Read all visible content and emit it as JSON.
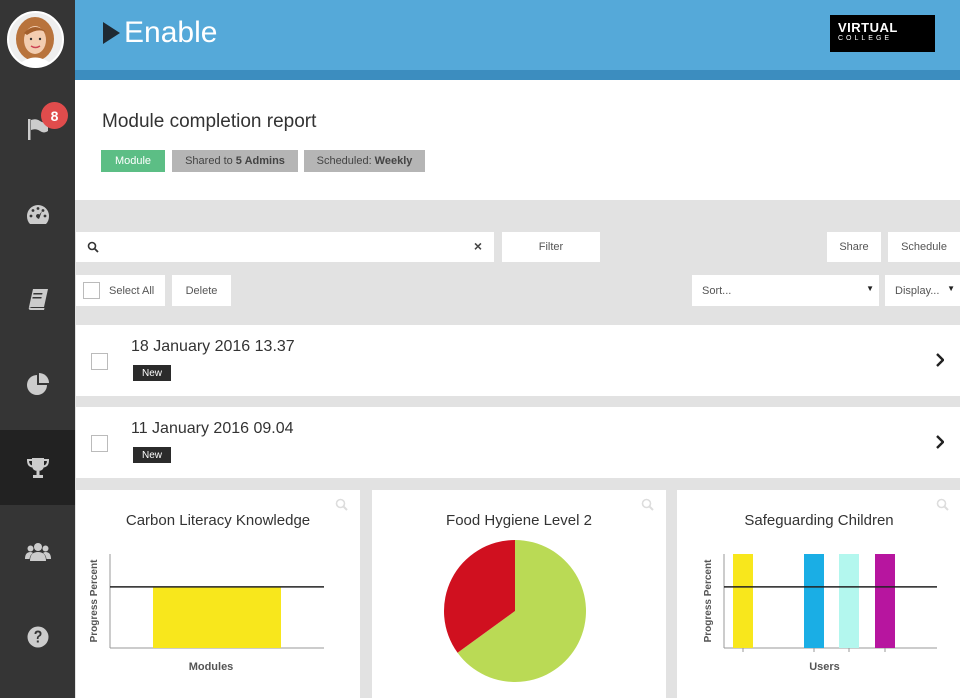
{
  "app": {
    "brand": "Enable",
    "logo_top": "VIRTUAL",
    "logo_bottom": "COLLEGE"
  },
  "sidebar": {
    "notification_count": "8",
    "items": [
      {
        "name": "flag-icon",
        "active": false
      },
      {
        "name": "dashboard-icon",
        "active": false
      },
      {
        "name": "book-icon",
        "active": false
      },
      {
        "name": "pie-chart-icon",
        "active": false
      },
      {
        "name": "trophy-icon",
        "active": true
      },
      {
        "name": "users-icon",
        "active": false
      },
      {
        "name": "help-icon",
        "active": false
      }
    ]
  },
  "page": {
    "title": "Module completion report",
    "tags": {
      "module": "Module",
      "shared_prefix": "Shared to",
      "shared_value": "5 Admins",
      "scheduled_prefix": "Scheduled:",
      "scheduled_value": "Weekly"
    }
  },
  "toolbar": {
    "search_value": "",
    "clear": "×",
    "filter": "Filter",
    "share": "Share",
    "schedule": "Schedule",
    "select_all": "Select All",
    "delete": "Delete",
    "sort": "Sort...",
    "display": "Display..."
  },
  "reports": [
    {
      "date": "18 January 2016 13.37",
      "badge": "New"
    },
    {
      "date": "11 January 2016 09.04",
      "badge": "New"
    }
  ],
  "charts": [
    {
      "title": "Carbon Literacy Knowledge",
      "ylabel": "Progress Percent",
      "xlabel": "Modules",
      "colors": {
        "bar": "#f8e71c",
        "target": "#222222"
      },
      "chart_data": {
        "type": "bar",
        "categories": [
          ""
        ],
        "values": [
          65
        ],
        "target": 65,
        "ylim": [
          0,
          100
        ],
        "xlabel": "Modules",
        "ylabel": "Progress Percent",
        "grid": false
      }
    },
    {
      "title": "Food Hygiene Level 2",
      "colors": {
        "slices": [
          "#bada55",
          "#d0101f"
        ]
      },
      "chart_data": {
        "type": "pie",
        "labels": [
          "",
          ""
        ],
        "values": [
          65,
          35
        ],
        "grid": false
      }
    },
    {
      "title": "Safeguarding Children",
      "ylabel": "Progress Percent",
      "xlabel": "Users",
      "colors": {
        "bars": [
          "#f8e71c",
          "#1aaee5",
          "#b3f7ee",
          "#b7159f"
        ],
        "target": "#222222"
      },
      "chart_data": {
        "type": "bar",
        "categories": [
          "",
          "",
          "",
          ""
        ],
        "values": [
          100,
          100,
          100,
          100
        ],
        "target": 65,
        "ylim": [
          0,
          100
        ],
        "xlabel": "Users",
        "ylabel": "Progress Percent",
        "grid": false
      }
    }
  ]
}
